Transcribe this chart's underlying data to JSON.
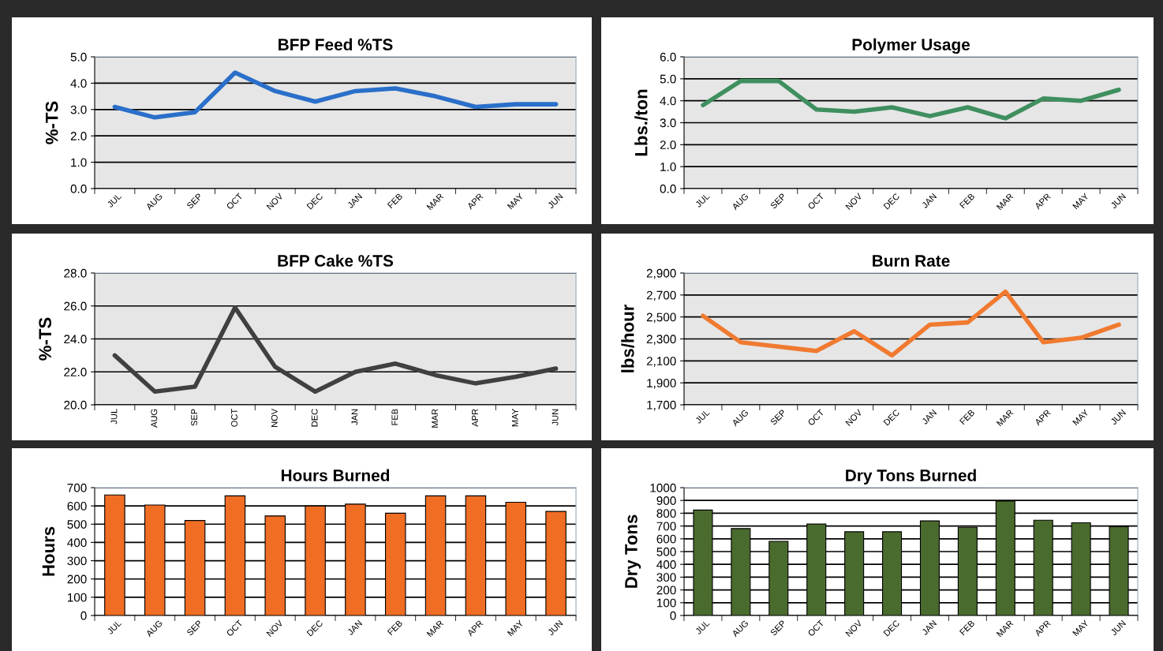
{
  "chart_data": [
    {
      "type": "line",
      "title": "BFP Feed %TS",
      "ylabel": "%-TS",
      "categories": [
        "JUL",
        "AUG",
        "SEP",
        "OCT",
        "NOV",
        "DEC",
        "JAN",
        "FEB",
        "MAR",
        "APR",
        "MAY",
        "JUN"
      ],
      "series": [
        {
          "color": "#2a6fc9",
          "values": [
            3.1,
            2.7,
            2.9,
            4.4,
            3.7,
            3.3,
            3.7,
            3.8,
            3.5,
            3.1,
            3.2,
            3.2
          ]
        }
      ],
      "ylim": [
        0,
        5
      ],
      "yticks": [
        {
          "value": 0,
          "label": "0.0"
        },
        {
          "value": 1,
          "label": "1.0"
        },
        {
          "value": 2,
          "label": "2.0"
        },
        {
          "value": 3,
          "label": "3.0"
        },
        {
          "value": 4,
          "label": "4.0"
        },
        {
          "value": 5,
          "label": "5.0"
        }
      ],
      "grid": "y"
    },
    {
      "type": "line",
      "title": "Polymer Usage",
      "ylabel": "Lbs./ton",
      "categories": [
        "JUL",
        "AUG",
        "SEP",
        "OCT",
        "NOV",
        "DEC",
        "JAN",
        "FEB",
        "MAR",
        "APR",
        "MAY",
        "JUN"
      ],
      "series": [
        {
          "color": "#3f8f5f",
          "values": [
            3.8,
            4.9,
            4.9,
            3.6,
            3.5,
            3.7,
            3.3,
            3.7,
            3.2,
            4.1,
            4.0,
            4.5
          ]
        }
      ],
      "ylim": [
        0,
        6
      ],
      "yticks": [
        {
          "value": 0,
          "label": "0.0"
        },
        {
          "value": 1,
          "label": "1.0"
        },
        {
          "value": 2,
          "label": "2.0"
        },
        {
          "value": 3,
          "label": "3.0"
        },
        {
          "value": 4,
          "label": "4.0"
        },
        {
          "value": 5,
          "label": "5.0"
        },
        {
          "value": 6,
          "label": "6.0"
        }
      ],
      "grid": "y"
    },
    {
      "type": "line",
      "title": "BFP Cake %TS",
      "ylabel": "%-TS",
      "categories": [
        "JUL",
        "AUG",
        "SEP",
        "OCT",
        "NOV",
        "DEC",
        "JAN",
        "FEB",
        "MAR",
        "APR",
        "MAY",
        "JUN"
      ],
      "series": [
        {
          "color": "#404040",
          "values": [
            23.0,
            20.8,
            21.1,
            25.9,
            22.3,
            20.8,
            22.0,
            22.5,
            21.8,
            21.3,
            21.7,
            22.2
          ]
        }
      ],
      "ylim": [
        20,
        28
      ],
      "yticks": [
        {
          "value": 20,
          "label": "20.0"
        },
        {
          "value": 22,
          "label": "22.0"
        },
        {
          "value": 24,
          "label": "24.0"
        },
        {
          "value": 26,
          "label": "26.0"
        },
        {
          "value": 28,
          "label": "28.0"
        }
      ],
      "grid": "y"
    },
    {
      "type": "line",
      "title": "Burn Rate",
      "ylabel": "lbs/hour",
      "categories": [
        "JUL",
        "AUG",
        "SEP",
        "OCT",
        "NOV",
        "DEC",
        "JAN",
        "FEB",
        "MAR",
        "APR",
        "MAY",
        "JUN"
      ],
      "series": [
        {
          "color": "#f07a30",
          "values": [
            2510,
            2270,
            2230,
            2190,
            2370,
            2150,
            2430,
            2450,
            2730,
            2270,
            2310,
            2430
          ]
        }
      ],
      "ylim": [
        1700,
        2900
      ],
      "yticks": [
        {
          "value": 1700,
          "label": "1,700"
        },
        {
          "value": 1900,
          "label": "1,900"
        },
        {
          "value": 2100,
          "label": "2,100"
        },
        {
          "value": 2300,
          "label": "2,300"
        },
        {
          "value": 2500,
          "label": "2,500"
        },
        {
          "value": 2700,
          "label": "2,700"
        },
        {
          "value": 2900,
          "label": "2,900"
        }
      ],
      "grid": "y"
    },
    {
      "type": "bar",
      "title": "Hours Burned",
      "ylabel": "Hours",
      "categories": [
        "JUL",
        "AUG",
        "SEP",
        "OCT",
        "NOV",
        "DEC",
        "JAN",
        "FEB",
        "MAR",
        "APR",
        "MAY",
        "JUN"
      ],
      "series": [
        {
          "color": "#f06d24",
          "values": [
            660,
            605,
            520,
            655,
            545,
            600,
            610,
            560,
            655,
            655,
            620,
            570
          ]
        }
      ],
      "ylim": [
        0,
        700
      ],
      "yticks": [
        0,
        100,
        200,
        300,
        400,
        500,
        600,
        700
      ],
      "grid": "y"
    },
    {
      "type": "bar",
      "title": "Dry Tons Burned",
      "ylabel": "Dry Tons",
      "categories": [
        "JUL",
        "AUG",
        "SEP",
        "OCT",
        "NOV",
        "DEC",
        "JAN",
        "FEB",
        "MAR",
        "APR",
        "MAY",
        "JUN"
      ],
      "series": [
        {
          "color": "#4a6b2e",
          "values": [
            825,
            680,
            580,
            715,
            655,
            655,
            740,
            690,
            895,
            745,
            725,
            695
          ]
        }
      ],
      "ylim": [
        0,
        1000
      ],
      "yticks": [
        0,
        100,
        200,
        300,
        400,
        500,
        600,
        700,
        800,
        900,
        1000
      ],
      "grid": "y"
    }
  ]
}
